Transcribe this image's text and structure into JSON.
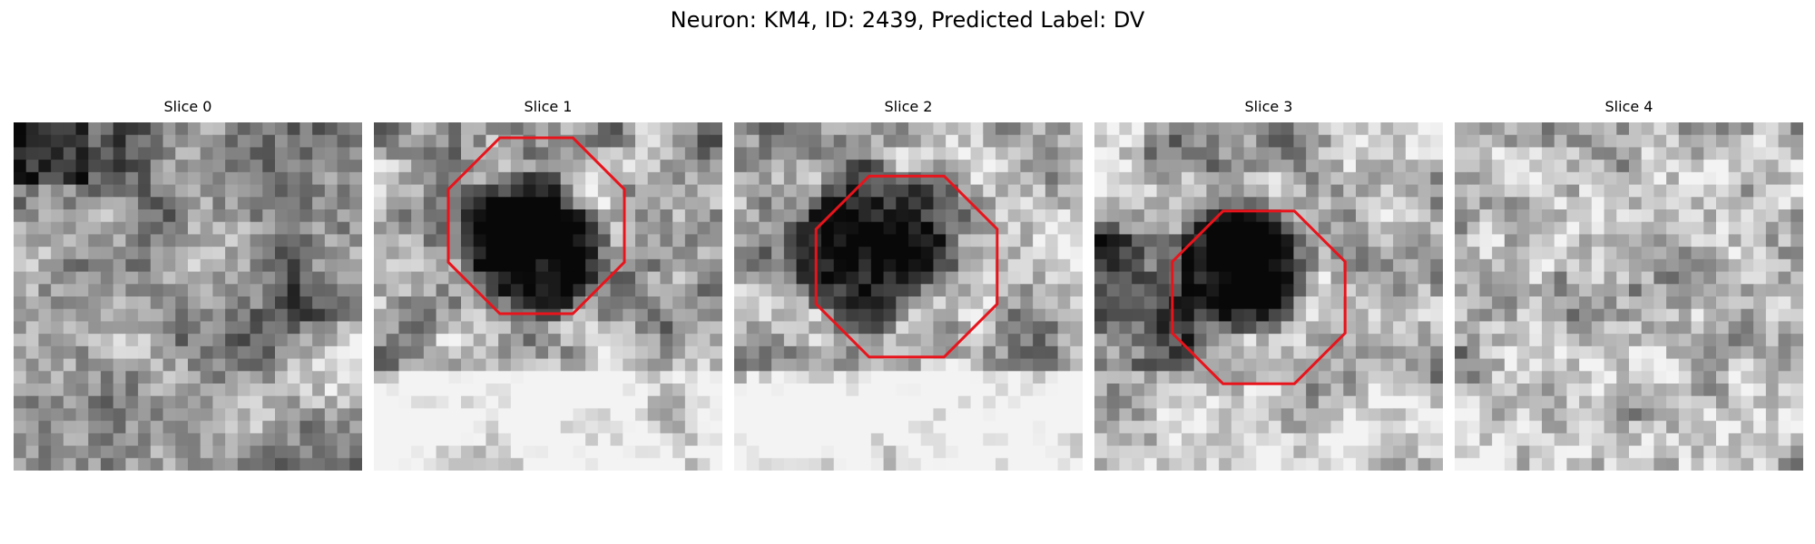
{
  "figure": {
    "title": "Neuron: KM4, ID: 2439, Predicted Label: DV"
  },
  "panels": [
    {
      "title": "Slice 0",
      "has_contour": false
    },
    {
      "title": "Slice 1",
      "has_contour": true
    },
    {
      "title": "Slice 2",
      "has_contour": true
    },
    {
      "title": "Slice 3",
      "has_contour": true
    },
    {
      "title": "Slice 4",
      "has_contour": false
    }
  ],
  "colors": {
    "contour": "#e8141c",
    "background": "#ffffff"
  }
}
